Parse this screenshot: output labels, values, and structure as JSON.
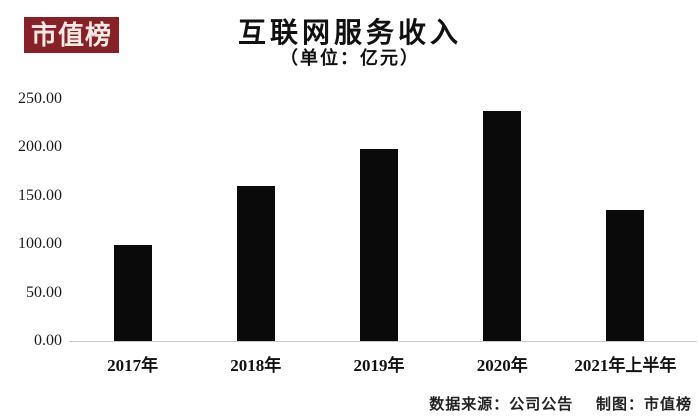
{
  "logo": {
    "text": "市值榜",
    "bg_color": "#872127",
    "text_color": "#f5e9e4"
  },
  "header": {
    "title": "互联网服务收入",
    "subtitle": "（单位：亿元）"
  },
  "chart_data": {
    "type": "bar",
    "title": "互联网服务收入",
    "unit_label": "（单位：亿元）",
    "categories": [
      "2017年",
      "2018年",
      "2019年",
      "2020年",
      "2021年上半年"
    ],
    "values": [
      99,
      160,
      198,
      238,
      135
    ],
    "xlabel": "",
    "ylabel": "",
    "ylim": [
      0,
      250
    ],
    "ytick_step": 50,
    "ytick_labels": [
      "250.00",
      "200.00",
      "150.00",
      "100.00",
      "50.00",
      "0.00"
    ],
    "bar_color": "#0a0a0a",
    "axis_color": "#c9c9c9",
    "grid": false,
    "legend": false
  },
  "footer": {
    "source": "数据来源：公司公告",
    "credit": "制图：市值榜"
  }
}
